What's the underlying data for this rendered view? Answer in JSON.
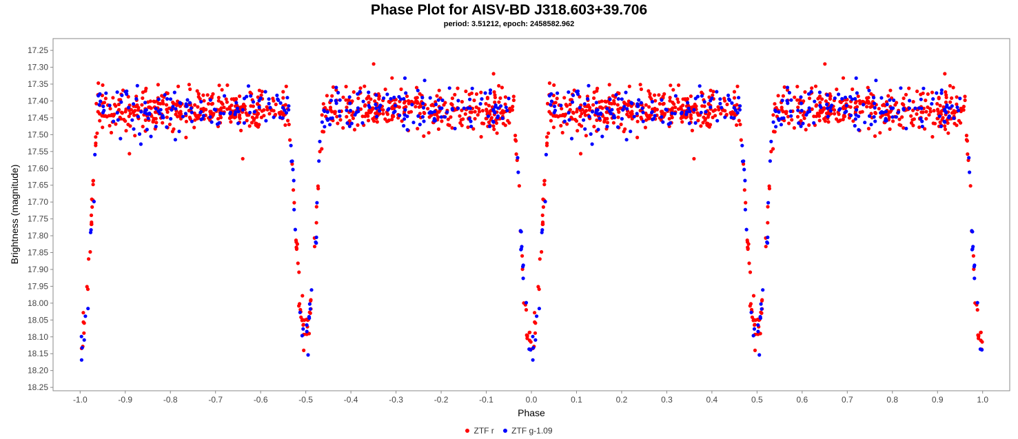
{
  "chart_data": {
    "type": "scatter",
    "title": "Phase Plot for AISV-BD J318.603+39.706",
    "subtitle": "period: 3.51212, epoch: 2458582.962",
    "xlabel": "Phase",
    "ylabel": "Brightness (magnitude)",
    "xlim": [
      -1.06,
      1.06
    ],
    "ylim": [
      18.26,
      17.215
    ],
    "y_inverted": true,
    "grid": false,
    "legend_position": "bottom-center",
    "x_ticks": [
      "-1.0",
      "-0.9",
      "-0.8",
      "-0.7",
      "-0.6",
      "-0.5",
      "-0.4",
      "-0.3",
      "-0.2",
      "-0.1",
      "0.0",
      "0.1",
      "0.2",
      "0.3",
      "0.4",
      "0.5",
      "0.6",
      "0.7",
      "0.8",
      "0.9",
      "1.0"
    ],
    "y_ticks": [
      "17.25",
      "17.30",
      "17.35",
      "17.40",
      "17.45",
      "17.50",
      "17.55",
      "17.60",
      "17.65",
      "17.70",
      "17.75",
      "17.80",
      "17.85",
      "17.90",
      "17.95",
      "18.00",
      "18.05",
      "18.10",
      "18.15",
      "18.20",
      "18.25"
    ],
    "light_curve_model": {
      "baseline_mag": 17.425,
      "primary_eclipse": {
        "phase": 0.0,
        "depth_mag": 0.71,
        "half_width": 0.04
      },
      "secondary_eclipse": {
        "phase": 0.5,
        "depth_mag": 0.66,
        "half_width": 0.04
      },
      "scatter_mag": 0.028
    },
    "series": [
      {
        "name": "ZTF r",
        "color": "#ff0000",
        "points_per_cycle": 760
      },
      {
        "name": "ZTF g-1.09",
        "color": "#0000ff",
        "points_per_cycle": 300
      }
    ]
  }
}
